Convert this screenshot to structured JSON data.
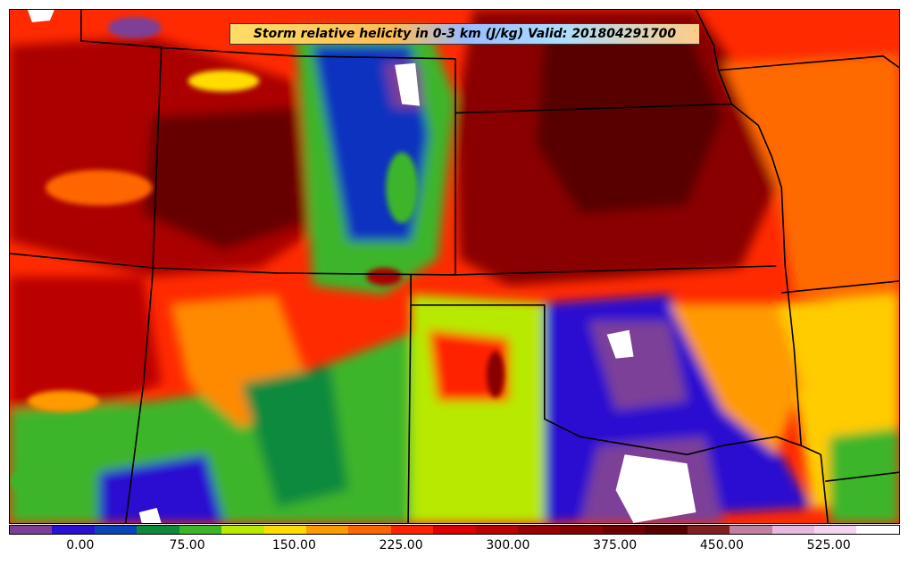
{
  "title": "Storm relative helicity in 0-3 km (J/kg) Valid: 201804291700",
  "colorbar": {
    "colors": [
      "#7b3f98",
      "#2a10d0",
      "#0a44b8",
      "#0f8a3c",
      "#3cb52a",
      "#b7ea00",
      "#ffdd00",
      "#ff9a00",
      "#ff6600",
      "#ff2200",
      "#dd0000",
      "#bb0000",
      "#990000",
      "#880000",
      "#700000",
      "#580000",
      "#802020",
      "#c080a0",
      "#e8b8e0",
      "#f4d4f0",
      "#ffffff"
    ],
    "tick_labels": [
      "0.00",
      "75.00",
      "150.00",
      "225.00",
      "300.00",
      "375.00",
      "450.00",
      "525.00"
    ],
    "tick_values": [
      0,
      75,
      150,
      225,
      300,
      375,
      450,
      525
    ],
    "range": [
      -50,
      575
    ]
  },
  "map": {
    "field": "Storm relative helicity in 0-3 km",
    "units": "J/kg",
    "valid": "201804291700"
  }
}
